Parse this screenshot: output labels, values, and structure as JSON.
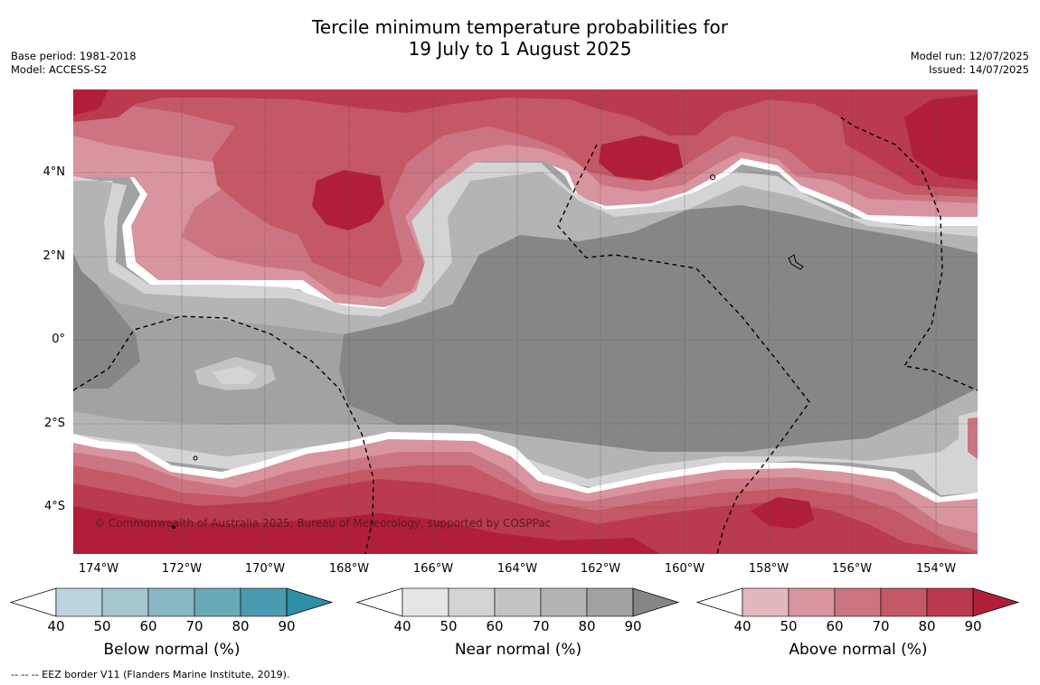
{
  "title_line1": "Tercile minimum temperature probabilities for",
  "title_line2": "19 July to 1 August 2025",
  "meta_left": [
    "Base period: 1981-2018",
    "Model: ACCESS-S2"
  ],
  "meta_right": [
    "Model run: 12/07/2025",
    "Issued: 14/07/2025"
  ],
  "lat_labels": [
    "4°N",
    "2°N",
    "0°",
    "2°S",
    "4°S"
  ],
  "lon_labels": [
    "174°W",
    "172°W",
    "170°W",
    "168°W",
    "166°W",
    "164°W",
    "162°W",
    "160°W",
    "158°W",
    "156°W",
    "154°W"
  ],
  "copyright": "© Commonwealth of Australia 2025, Bureau of Meteorology, supported by COSPPac",
  "colorbars": [
    {
      "title": "Below normal (%)",
      "ticks": [
        "40",
        "50",
        "60",
        "70",
        "80",
        "90"
      ],
      "colors": [
        "#ffffff",
        "#bcd4dc",
        "#a6c6cf",
        "#8ab7c4",
        "#6aa9b8",
        "#4a9baf",
        "#2f8fa6"
      ]
    },
    {
      "title": "Near normal (%)",
      "ticks": [
        "40",
        "50",
        "60",
        "70",
        "80",
        "90"
      ],
      "colors": [
        "#ffffff",
        "#e5e5e5",
        "#d4d4d4",
        "#c4c4c4",
        "#b4b4b4",
        "#a2a2a2",
        "#868686"
      ]
    },
    {
      "title": "Above normal (%)",
      "ticks": [
        "40",
        "50",
        "60",
        "70",
        "80",
        "90"
      ],
      "colors": [
        "#ffffff",
        "#e2b8bf",
        "#d8949f",
        "#cc7582",
        "#c45865",
        "#ba3a4e",
        "#b01e3a"
      ]
    }
  ],
  "footer": "--  --  -- EEZ border V11 (Flanders Marine Institute, 2019)."
}
